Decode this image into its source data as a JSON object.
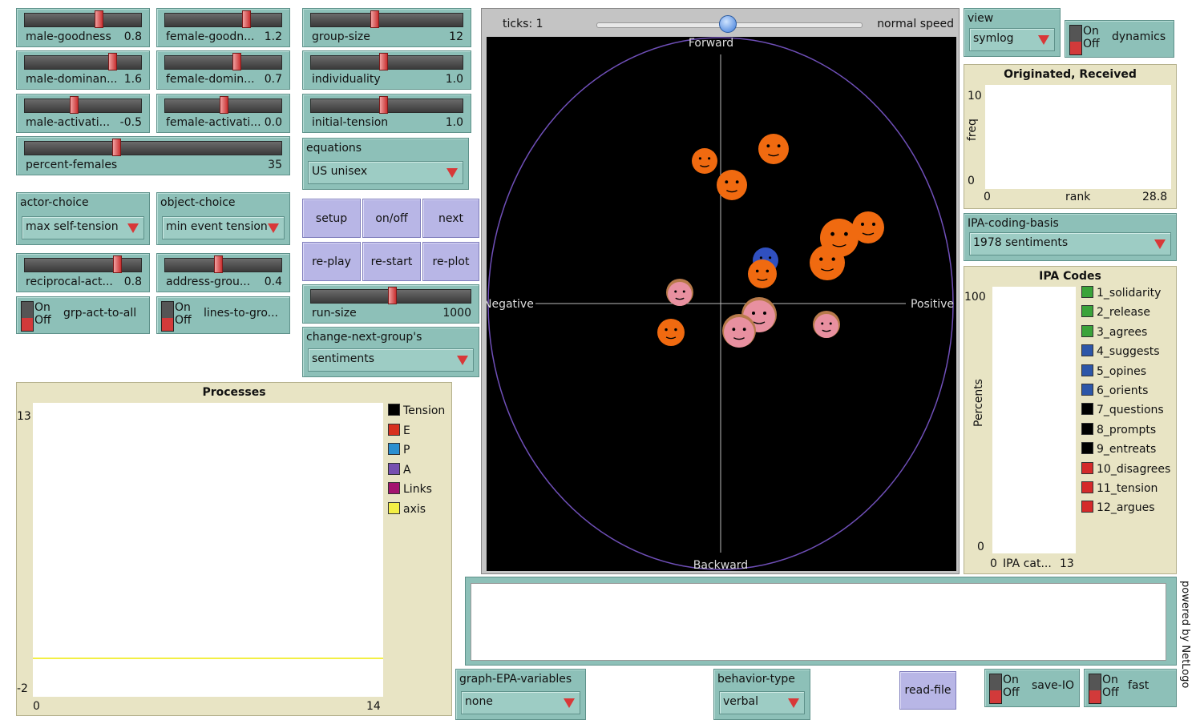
{
  "sliders": [
    {
      "label": "male-goodness",
      "value": "0.8"
    },
    {
      "label": "female-goodn...",
      "value": "1.2"
    },
    {
      "label": "male-dominan...",
      "value": "1.6"
    },
    {
      "label": "female-domin...",
      "value": "0.7"
    },
    {
      "label": "male-activati...",
      "value": "-0.5"
    },
    {
      "label": "female-activati...",
      "value": "0.0"
    },
    {
      "label": "percent-females",
      "value": "35"
    },
    {
      "label": "reciprocal-act...",
      "value": "0.8"
    },
    {
      "label": "address-grou...",
      "value": "0.4"
    },
    {
      "label": "group-size",
      "value": "12"
    },
    {
      "label": "individuality",
      "value": "1.0"
    },
    {
      "label": "initial-tension",
      "value": "1.0"
    },
    {
      "label": "run-size",
      "value": "1000"
    }
  ],
  "choosers": [
    {
      "label": "actor-choice",
      "value": "max self-tension"
    },
    {
      "label": "object-choice",
      "value": "min event tension"
    },
    {
      "label": "equations",
      "value": "US unisex"
    },
    {
      "label": "change-next-group's",
      "value": "sentiments"
    },
    {
      "label": "view",
      "value": "symlog"
    },
    {
      "label": "IPA-coding-basis",
      "value": "1978 sentiments"
    },
    {
      "label": "graph-EPA-variables",
      "value": "none"
    },
    {
      "label": "behavior-type",
      "value": "verbal"
    }
  ],
  "buttons": [
    "setup",
    "on/off",
    "next",
    "re-play",
    "re-start",
    "re-plot",
    "read-file"
  ],
  "switch_on": "On",
  "switch_off": "Off",
  "switches": [
    "grp-act-to-all",
    "lines-to-gro...",
    "dynamics",
    "save-IO",
    "fast"
  ],
  "view": {
    "ticks": "ticks: 1",
    "speed": "normal speed",
    "top": "Forward",
    "left": "Negative",
    "right": "Positive",
    "bottom": "Backward"
  },
  "plots": [
    {
      "title": "Processes",
      "ymax": "13",
      "ymin": "-2",
      "xmin": "0",
      "xmax": "14",
      "legend": [
        {
          "name": "Tension",
          "color": "#000000"
        },
        {
          "name": "E",
          "color": "#d7301f"
        },
        {
          "name": "P",
          "color": "#2b8fd0"
        },
        {
          "name": "A",
          "color": "#7650b0"
        },
        {
          "name": "Links",
          "color": "#a3146f"
        },
        {
          "name": "axis",
          "color": "#f3ef45"
        }
      ]
    },
    {
      "title": "Originated, Received",
      "ylabel": "freq",
      "xlabel": "rank",
      "ymax": "10",
      "ymin": "0",
      "xmin": "0",
      "xmax": "28.8",
      "legend": []
    },
    {
      "title": "IPA Codes",
      "ylabel": "Percents",
      "xlabel": "IPA cat...",
      "ymax": "100",
      "ymin": "0",
      "xmin": "0",
      "xmax": "13",
      "legend": [
        {
          "name": "1_solidarity",
          "color": "#3aa33a"
        },
        {
          "name": "2_release",
          "color": "#3aa33a"
        },
        {
          "name": "3_agrees",
          "color": "#3aa33a"
        },
        {
          "name": "4_suggests",
          "color": "#2c56a8"
        },
        {
          "name": "5_opines",
          "color": "#2c56a8"
        },
        {
          "name": "6_orients",
          "color": "#2c56a8"
        },
        {
          "name": "7_questions",
          "color": "#000000"
        },
        {
          "name": "8_prompts",
          "color": "#000000"
        },
        {
          "name": "9_entreats",
          "color": "#000000"
        },
        {
          "name": "10_disagrees",
          "color": "#d42a2a"
        },
        {
          "name": "11_tension",
          "color": "#d42a2a"
        },
        {
          "name": "12_argues",
          "color": "#d42a2a"
        }
      ]
    }
  ],
  "footer": "powered by NetLogo"
}
